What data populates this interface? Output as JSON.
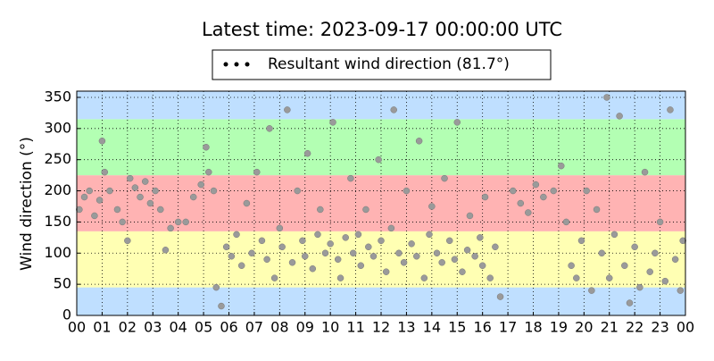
{
  "chart_data": {
    "type": "scatter",
    "title": "Latest time: 2023-09-17 00:00:00 UTC",
    "y_label": "Wind direction (°)",
    "xlim": [
      0,
      24
    ],
    "ylim": [
      0,
      360
    ],
    "xticks": [
      {
        "value": 0,
        "label": "00"
      },
      {
        "value": 1,
        "label": "01"
      },
      {
        "value": 2,
        "label": "02"
      },
      {
        "value": 3,
        "label": "03"
      },
      {
        "value": 4,
        "label": "04"
      },
      {
        "value": 5,
        "label": "05"
      },
      {
        "value": 6,
        "label": "06"
      },
      {
        "value": 7,
        "label": "07"
      },
      {
        "value": 8,
        "label": "08"
      },
      {
        "value": 9,
        "label": "09"
      },
      {
        "value": 10,
        "label": "10"
      },
      {
        "value": 11,
        "label": "11"
      },
      {
        "value": 12,
        "label": "12"
      },
      {
        "value": 13,
        "label": "13"
      },
      {
        "value": 14,
        "label": "14"
      },
      {
        "value": 15,
        "label": "15"
      },
      {
        "value": 16,
        "label": "16"
      },
      {
        "value": 17,
        "label": "17"
      },
      {
        "value": 18,
        "label": "18"
      },
      {
        "value": 19,
        "label": "19"
      },
      {
        "value": 20,
        "label": "20"
      },
      {
        "value": 21,
        "label": "21"
      },
      {
        "value": 22,
        "label": "22"
      },
      {
        "value": 23,
        "label": "23"
      },
      {
        "value": 24,
        "label": "00"
      }
    ],
    "yticks": [
      0,
      50,
      100,
      150,
      200,
      250,
      300,
      350
    ],
    "grid": true,
    "bands": [
      {
        "from": 0,
        "to": 45,
        "color": "#bfdfff"
      },
      {
        "from": 45,
        "to": 135,
        "color": "#ffffb3"
      },
      {
        "from": 135,
        "to": 225,
        "color": "#ffb3b3"
      },
      {
        "from": 225,
        "to": 315,
        "color": "#b3ffb3"
      },
      {
        "from": 315,
        "to": 360,
        "color": "#bfdfff"
      }
    ],
    "x": [
      0.1,
      0.3,
      0.5,
      0.7,
      0.9,
      1.0,
      1.1,
      1.3,
      1.6,
      1.8,
      2.0,
      2.1,
      2.3,
      2.5,
      2.7,
      2.9,
      3.1,
      3.3,
      3.5,
      3.7,
      4.0,
      4.3,
      4.6,
      4.9,
      5.1,
      5.2,
      5.4,
      5.5,
      5.7,
      5.9,
      6.1,
      6.3,
      6.5,
      6.7,
      6.9,
      7.1,
      7.3,
      7.5,
      7.6,
      7.8,
      8.0,
      8.1,
      8.3,
      8.5,
      8.7,
      8.9,
      9.0,
      9.1,
      9.3,
      9.5,
      9.6,
      9.8,
      10.0,
      10.1,
      10.3,
      10.4,
      10.6,
      10.8,
      10.9,
      11.1,
      11.2,
      11.4,
      11.5,
      11.7,
      11.9,
      12.0,
      12.2,
      12.4,
      12.5,
      12.7,
      12.9,
      13.0,
      13.2,
      13.4,
      13.5,
      13.7,
      13.9,
      14.0,
      14.2,
      14.4,
      14.5,
      14.7,
      14.9,
      15.0,
      15.2,
      15.4,
      15.5,
      15.7,
      15.9,
      16.0,
      16.1,
      16.3,
      16.5,
      16.7,
      17.2,
      17.5,
      17.8,
      18.1,
      18.4,
      18.8,
      19.1,
      19.3,
      19.5,
      19.7,
      19.9,
      20.1,
      20.3,
      20.5,
      20.7,
      20.9,
      21.0,
      21.2,
      21.4,
      21.6,
      21.8,
      22.0,
      22.2,
      22.4,
      22.6,
      22.8,
      23.0,
      23.2,
      23.4,
      23.6,
      23.8,
      23.9
    ],
    "series": [
      {
        "name": "Resultant wind direction (81.7°)",
        "color": "#9a9a9a",
        "values": [
          170,
          190,
          200,
          160,
          185,
          280,
          230,
          200,
          170,
          150,
          120,
          220,
          205,
          190,
          215,
          180,
          200,
          170,
          105,
          140,
          150,
          150,
          190,
          210,
          270,
          230,
          200,
          45,
          15,
          110,
          95,
          130,
          80,
          180,
          100,
          230,
          120,
          90,
          300,
          60,
          140,
          110,
          330,
          85,
          200,
          120,
          95,
          260,
          75,
          130,
          170,
          100,
          115,
          310,
          90,
          60,
          125,
          220,
          100,
          130,
          80,
          170,
          110,
          95,
          250,
          120,
          70,
          140,
          330,
          100,
          85,
          200,
          115,
          95,
          280,
          60,
          130,
          175,
          100,
          85,
          220,
          120,
          90,
          310,
          70,
          105,
          160,
          95,
          125,
          80,
          190,
          60,
          110,
          30,
          200,
          180,
          165,
          210,
          190,
          200,
          240,
          150,
          80,
          60,
          120,
          200,
          40,
          170,
          100,
          350,
          60,
          130,
          320,
          80,
          20,
          110,
          45,
          230,
          70,
          100,
          150,
          55,
          330,
          90,
          40,
          120
        ]
      }
    ]
  }
}
